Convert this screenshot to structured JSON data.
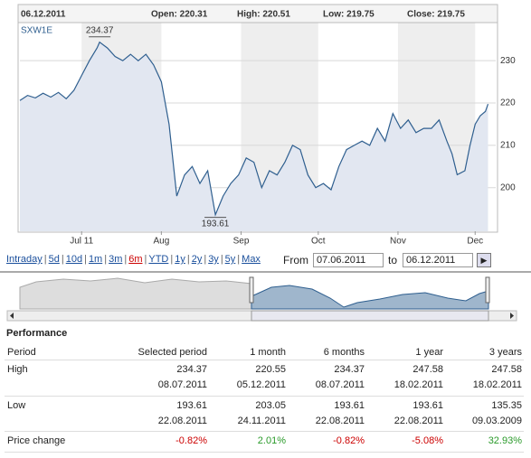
{
  "header": {
    "date": "06.12.2011",
    "open": "Open: 220.31",
    "high": "High: 220.51",
    "low": "Low: 219.75",
    "close": "Close: 219.75"
  },
  "chart_data": {
    "type": "line",
    "series": [
      {
        "name": "SXW1E",
        "color": "#2f5f8f",
        "x": [
          0,
          3,
          6,
          9,
          12,
          15,
          18,
          21,
          24,
          27,
          30,
          31,
          34,
          37,
          40,
          43,
          46,
          49,
          52,
          55,
          58,
          61,
          64,
          67,
          70,
          73,
          76,
          79,
          82,
          85,
          88,
          91,
          94,
          97,
          100,
          103,
          106,
          109,
          112,
          115,
          118,
          121,
          124,
          127,
          130,
          133,
          136,
          139,
          142,
          145,
          148,
          151,
          154,
          157,
          160,
          163,
          166,
          168,
          170,
          173,
          175,
          177,
          179,
          181,
          182
        ],
        "values": [
          220.6,
          221.8,
          221.2,
          222.3,
          221.4,
          222.5,
          221,
          223,
          226.5,
          230,
          233,
          234.37,
          233,
          231,
          230,
          231.5,
          230,
          231.5,
          229,
          225,
          215,
          198,
          203,
          205,
          201,
          204,
          193.61,
          198,
          201,
          203,
          207,
          206,
          200,
          204,
          203,
          206,
          210,
          209,
          203,
          200,
          201,
          199.5,
          205,
          209,
          210,
          211,
          210,
          214,
          211,
          217.5,
          214,
          216,
          213,
          214,
          214,
          216,
          211,
          208,
          203.05,
          204,
          210,
          215,
          217,
          218,
          219.75
        ]
      }
    ],
    "xlim": [
      0,
      185
    ],
    "xticks": [
      {
        "value": 24,
        "label": "Jul 11"
      },
      {
        "value": 55,
        "label": "Aug"
      },
      {
        "value": 86,
        "label": "Sep"
      },
      {
        "value": 116,
        "label": "Oct"
      },
      {
        "value": 147,
        "label": "Nov"
      },
      {
        "value": 177,
        "label": "Dec"
      }
    ],
    "ylim": [
      189.7,
      239
    ],
    "yticks": [
      200,
      210,
      220,
      230
    ],
    "grid": true
  },
  "nav": {
    "links": [
      "Intraday",
      "5d",
      "10d",
      "1m",
      "3m",
      "6m",
      "YTD",
      "1y",
      "2y",
      "3y",
      "5y",
      "Max"
    ],
    "selected": "6m",
    "from_label": "From",
    "from": "07.06.2011",
    "to_label": "to",
    "to": "06.12.2011"
  },
  "performance": {
    "title": "Performance",
    "columns": [
      "Period",
      "Selected period",
      "1 month",
      "6 months",
      "1 year",
      "3 years"
    ],
    "rows": [
      [
        "High",
        "234.37",
        "220.55",
        "234.37",
        "247.58",
        "247.58"
      ],
      [
        "",
        "08.07.2011",
        "05.12.2011",
        "08.07.2011",
        "18.02.2011",
        "18.02.2011"
      ],
      [
        "Low",
        "193.61",
        "203.05",
        "193.61",
        "193.61",
        "135.35"
      ],
      [
        "",
        "22.08.2011",
        "24.11.2011",
        "22.08.2011",
        "22.08.2011",
        "09.03.2009"
      ],
      [
        "Price change",
        "-0.82%",
        "2.01%",
        "-0.82%",
        "-5.08%",
        "32.93%"
      ]
    ]
  }
}
